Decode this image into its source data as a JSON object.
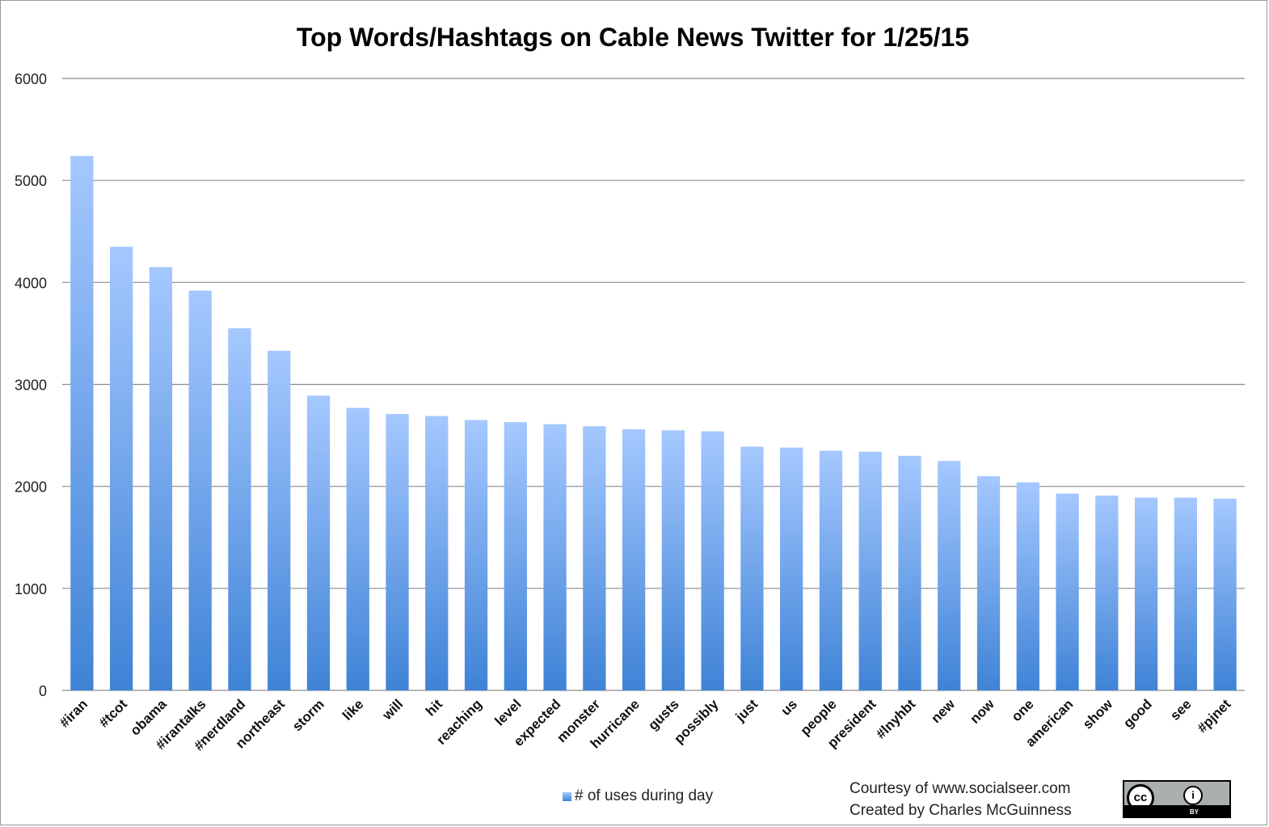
{
  "chart_data": {
    "type": "bar",
    "title": "Top Words/Hashtags on Cable News Twitter for 1/25/15",
    "xlabel": "",
    "ylabel": "",
    "ylim": [
      0,
      6000
    ],
    "yticks": [
      0,
      1000,
      2000,
      3000,
      4000,
      5000,
      6000
    ],
    "grid": true,
    "legend_position": "bottom",
    "categories": [
      "#iran",
      "#tcot",
      "obama",
      "#irantalks",
      "#nerdland",
      "northeast",
      "storm",
      "like",
      "will",
      "hit",
      "reaching",
      "level",
      "expected",
      "monster",
      "hurricane",
      "gusts",
      "possibly",
      "just",
      "us",
      "people",
      "president",
      "#lnyhbt",
      "new",
      "now",
      "one",
      "american",
      "show",
      "good",
      "see",
      "#pjnet"
    ],
    "series": [
      {
        "name": "# of uses during day",
        "values": [
          5240,
          4350,
          4150,
          3920,
          3550,
          3330,
          2890,
          2770,
          2710,
          2690,
          2650,
          2630,
          2610,
          2590,
          2560,
          2550,
          2540,
          2390,
          2380,
          2350,
          2340,
          2300,
          2250,
          2100,
          2040,
          1930,
          1910,
          1890,
          1890,
          1880
        ]
      }
    ],
    "colors": {
      "bar_top": "#a5c8ff",
      "bar_bottom": "#3f83d6",
      "grid": "#8c8c8c"
    }
  },
  "footer": {
    "credit_line1": "Courtesy of www.socialseer.com",
    "credit_line2": "Created by Charles McGuinness",
    "license_badge": {
      "icon": "creative-commons-by-icon",
      "cc_text": "cc",
      "by_text": "BY"
    }
  }
}
